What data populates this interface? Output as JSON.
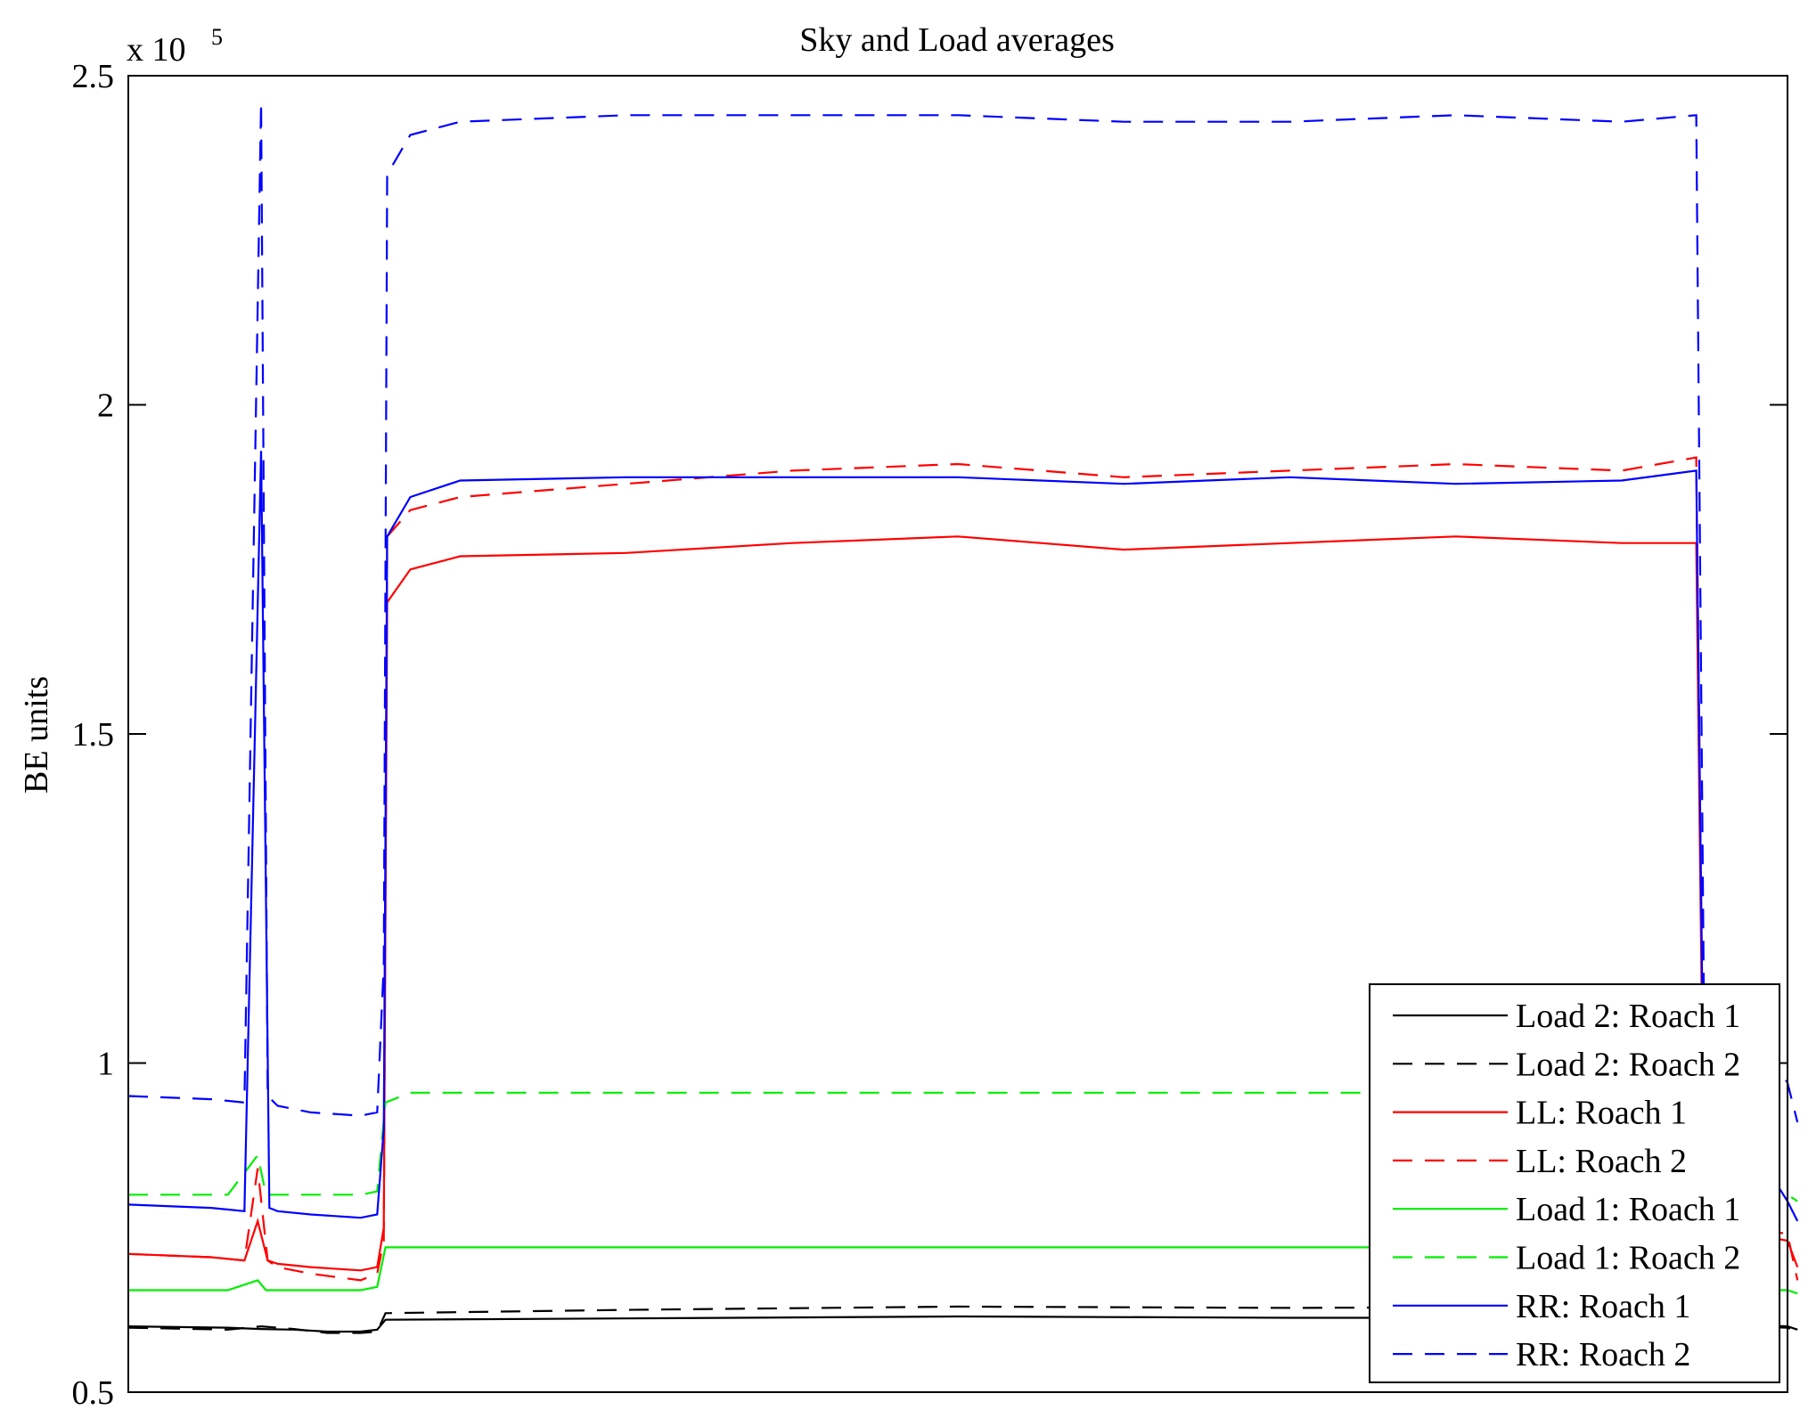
{
  "chart_data": {
    "type": "line",
    "title": "Sky and Load averages",
    "ylabel": "BE units",
    "xlabel": "",
    "y_exponent_label": "x 10",
    "y_exponent": "5",
    "ylim": [
      0.5,
      2.5
    ],
    "y_ticks": [
      {
        "value": 0.5,
        "label": "0.5"
      },
      {
        "value": 1.0,
        "label": "1"
      },
      {
        "value": 1.5,
        "label": "1.5"
      },
      {
        "value": 2.0,
        "label": "2"
      },
      {
        "value": 2.5,
        "label": "2.5"
      }
    ],
    "xlim": [
      0,
      100
    ],
    "x_ticks_visible": false,
    "grid": false,
    "legend_position": "bottom-right",
    "series": [
      {
        "name": "Load 2: Roach 1",
        "color": "#000000",
        "dash": "solid",
        "x": [
          0,
          6,
          8,
          10,
          12,
          14,
          15,
          15.5,
          30,
          50,
          70,
          90,
          94.5,
          95,
          100,
          100.6
        ],
        "y": [
          0.6,
          0.598,
          0.596,
          0.595,
          0.592,
          0.592,
          0.595,
          0.61,
          0.612,
          0.615,
          0.613,
          0.613,
          0.615,
          0.605,
          0.6,
          0.595
        ]
      },
      {
        "name": "Load 2: Roach 2",
        "color": "#000000",
        "dash": "dashed",
        "x": [
          0,
          6,
          8,
          10,
          12,
          14,
          15,
          15.5,
          30,
          50,
          70,
          90,
          94.5,
          95,
          100,
          100.6
        ],
        "y": [
          0.598,
          0.595,
          0.6,
          0.596,
          0.59,
          0.59,
          0.592,
          0.62,
          0.625,
          0.63,
          0.628,
          0.63,
          0.632,
          0.602,
          0.598,
          0.592
        ]
      },
      {
        "name": "LL: Roach 1",
        "color": "#ff0000",
        "dash": "solid",
        "x": [
          0,
          5,
          7,
          7.8,
          8.4,
          9,
          11,
          14,
          15,
          15.4,
          15.6,
          17,
          20,
          30,
          40,
          50,
          60,
          70,
          80,
          90,
          94.5,
          95,
          98,
          100,
          100.6
        ],
        "y": [
          0.71,
          0.705,
          0.7,
          0.76,
          0.7,
          0.695,
          0.69,
          0.685,
          0.69,
          0.75,
          1.7,
          1.75,
          1.77,
          1.775,
          1.79,
          1.8,
          1.78,
          1.79,
          1.8,
          1.79,
          1.79,
          0.74,
          0.74,
          0.73,
          0.69
        ]
      },
      {
        "name": "LL: Roach 2",
        "color": "#ff0000",
        "dash": "dashed",
        "x": [
          0,
          5,
          7,
          7.8,
          8.4,
          9,
          11,
          14,
          15,
          15.4,
          15.6,
          17,
          20,
          30,
          40,
          50,
          60,
          70,
          80,
          90,
          94.5,
          95,
          98,
          100,
          100.6
        ],
        "y": [
          0.71,
          0.705,
          0.7,
          0.84,
          0.7,
          0.69,
          0.68,
          0.67,
          0.68,
          0.73,
          1.8,
          1.84,
          1.86,
          1.88,
          1.9,
          1.91,
          1.89,
          1.9,
          1.91,
          1.9,
          1.92,
          0.76,
          0.75,
          0.74,
          0.67
        ]
      },
      {
        "name": "Load 1: Roach 1",
        "color": "#00ee00",
        "dash": "solid",
        "x": [
          0,
          6,
          7.8,
          8.3,
          9,
          14,
          15,
          15.5,
          30,
          50,
          70,
          90,
          94.5,
          95,
          100,
          100.6
        ],
        "y": [
          0.655,
          0.655,
          0.67,
          0.655,
          0.655,
          0.655,
          0.66,
          0.72,
          0.72,
          0.72,
          0.72,
          0.72,
          0.72,
          0.655,
          0.655,
          0.65
        ]
      },
      {
        "name": "Load 1: Roach 2",
        "color": "#00ee00",
        "dash": "dashed",
        "x": [
          0,
          6,
          7.8,
          8.3,
          9,
          14,
          15,
          15.5,
          17,
          30,
          50,
          70,
          90,
          94.5,
          95,
          100,
          100.6
        ],
        "y": [
          0.8,
          0.8,
          0.86,
          0.8,
          0.8,
          0.8,
          0.805,
          0.94,
          0.955,
          0.955,
          0.955,
          0.955,
          0.955,
          0.955,
          0.8,
          0.8,
          0.79
        ]
      },
      {
        "name": "RR: Roach 1",
        "color": "#0000ff",
        "dash": "solid",
        "x": [
          0,
          5,
          7,
          8.0,
          8.5,
          9,
          11,
          14,
          15,
          15.4,
          15.6,
          17,
          20,
          30,
          40,
          50,
          60,
          70,
          80,
          90,
          94.5,
          95,
          98,
          99.5,
          100,
          100.6
        ],
        "y": [
          0.785,
          0.78,
          0.775,
          1.93,
          0.78,
          0.775,
          0.77,
          0.765,
          0.77,
          0.9,
          1.8,
          1.86,
          1.885,
          1.89,
          1.89,
          1.89,
          1.88,
          1.89,
          1.88,
          1.885,
          1.9,
          0.805,
          0.805,
          0.81,
          0.79,
          0.76
        ]
      },
      {
        "name": "RR: Roach 2",
        "color": "#0000ff",
        "dash": "dashed",
        "x": [
          0,
          5,
          7,
          8.0,
          8.4,
          9,
          11,
          14,
          15,
          15.4,
          15.6,
          17,
          20,
          30,
          40,
          50,
          60,
          70,
          80,
          90,
          94.5,
          95,
          98,
          99.5,
          100,
          100.6
        ],
        "y": [
          0.95,
          0.945,
          0.94,
          2.46,
          0.95,
          0.935,
          0.925,
          0.92,
          0.925,
          1.15,
          2.35,
          2.41,
          2.43,
          2.44,
          2.44,
          2.44,
          2.43,
          2.43,
          2.44,
          2.43,
          2.44,
          0.98,
          0.975,
          0.99,
          0.97,
          0.91
        ]
      }
    ]
  }
}
